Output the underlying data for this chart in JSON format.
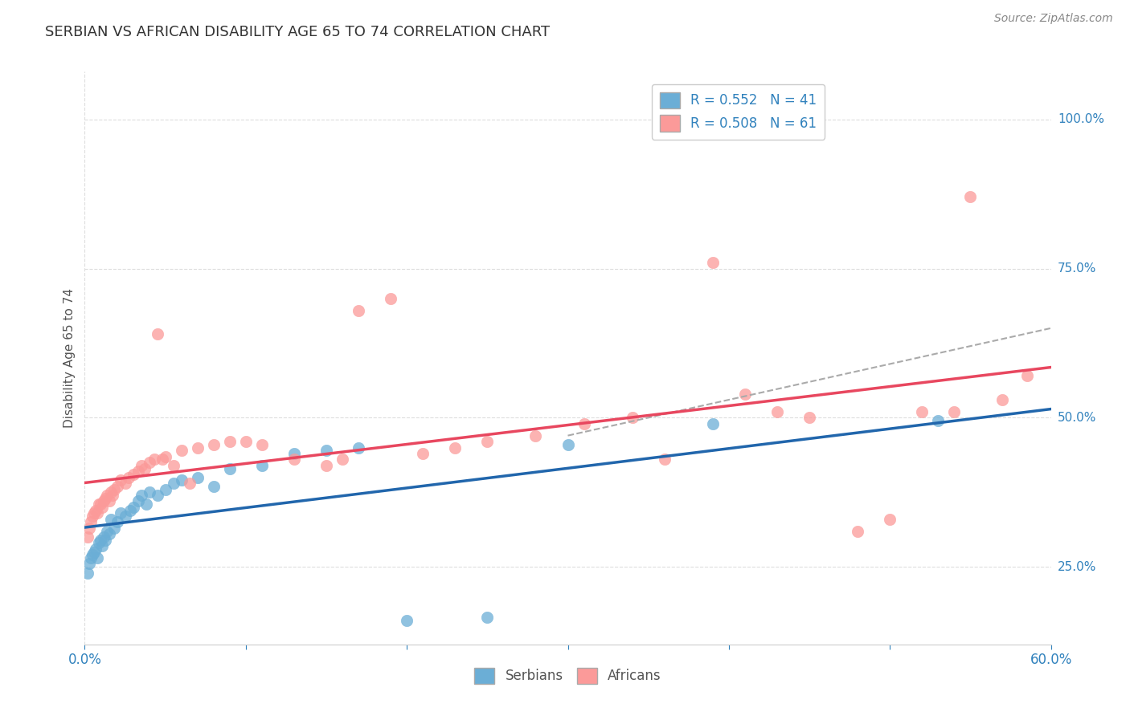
{
  "title": "SERBIAN VS AFRICAN DISABILITY AGE 65 TO 74 CORRELATION CHART",
  "source": "Source: ZipAtlas.com",
  "ylabel": "Disability Age 65 to 74",
  "xlim": [
    0.0,
    0.6
  ],
  "ylim": [
    0.12,
    1.08
  ],
  "xticks": [
    0.0,
    0.1,
    0.2,
    0.3,
    0.4,
    0.5,
    0.6
  ],
  "xticklabels": [
    "0.0%",
    "",
    "",
    "",
    "",
    "",
    "60.0%"
  ],
  "yticks_right": [
    0.25,
    0.5,
    0.75,
    1.0
  ],
  "yticklabels_right": [
    "25.0%",
    "50.0%",
    "75.0%",
    "100.0%"
  ],
  "serbian_color": "#6baed6",
  "african_color": "#fb9a99",
  "serbian_line_color": "#2166ac",
  "african_line_color": "#e8475f",
  "dash_line_color": "#aaaaaa",
  "serbian_R": 0.552,
  "serbian_N": 41,
  "african_R": 0.508,
  "african_N": 61,
  "legend_text_color": "#3182bd",
  "tick_color": "#3182bd",
  "grid_color": "#dddddd",
  "title_color": "#333333",
  "source_color": "#888888",
  "ylabel_color": "#555555",
  "sx": [
    0.002,
    0.003,
    0.004,
    0.005,
    0.006,
    0.007,
    0.008,
    0.009,
    0.01,
    0.011,
    0.012,
    0.013,
    0.014,
    0.015,
    0.016,
    0.018,
    0.02,
    0.022,
    0.025,
    0.028,
    0.03,
    0.033,
    0.035,
    0.038,
    0.04,
    0.045,
    0.05,
    0.055,
    0.06,
    0.07,
    0.08,
    0.09,
    0.11,
    0.13,
    0.15,
    0.17,
    0.2,
    0.25,
    0.3,
    0.39,
    0.53
  ],
  "sy": [
    0.24,
    0.255,
    0.265,
    0.27,
    0.275,
    0.28,
    0.265,
    0.29,
    0.295,
    0.285,
    0.3,
    0.295,
    0.31,
    0.305,
    0.33,
    0.315,
    0.325,
    0.34,
    0.335,
    0.345,
    0.35,
    0.36,
    0.37,
    0.355,
    0.375,
    0.37,
    0.38,
    0.39,
    0.395,
    0.4,
    0.385,
    0.415,
    0.42,
    0.44,
    0.445,
    0.45,
    0.16,
    0.165,
    0.455,
    0.49,
    0.495
  ],
  "ax": [
    0.002,
    0.003,
    0.004,
    0.005,
    0.006,
    0.007,
    0.008,
    0.009,
    0.01,
    0.011,
    0.012,
    0.013,
    0.014,
    0.015,
    0.016,
    0.017,
    0.018,
    0.02,
    0.022,
    0.025,
    0.027,
    0.03,
    0.033,
    0.035,
    0.037,
    0.04,
    0.043,
    0.045,
    0.048,
    0.05,
    0.055,
    0.06,
    0.065,
    0.07,
    0.08,
    0.09,
    0.1,
    0.11,
    0.13,
    0.15,
    0.16,
    0.17,
    0.19,
    0.21,
    0.23,
    0.25,
    0.28,
    0.31,
    0.34,
    0.36,
    0.39,
    0.41,
    0.43,
    0.45,
    0.48,
    0.5,
    0.52,
    0.54,
    0.55,
    0.57,
    0.585
  ],
  "ay": [
    0.3,
    0.315,
    0.325,
    0.335,
    0.34,
    0.345,
    0.34,
    0.355,
    0.355,
    0.35,
    0.36,
    0.365,
    0.37,
    0.36,
    0.375,
    0.37,
    0.38,
    0.385,
    0.395,
    0.39,
    0.4,
    0.405,
    0.41,
    0.42,
    0.415,
    0.425,
    0.43,
    0.64,
    0.43,
    0.435,
    0.42,
    0.445,
    0.39,
    0.45,
    0.455,
    0.46,
    0.46,
    0.455,
    0.43,
    0.42,
    0.43,
    0.68,
    0.7,
    0.44,
    0.45,
    0.46,
    0.47,
    0.49,
    0.5,
    0.43,
    0.76,
    0.54,
    0.51,
    0.5,
    0.31,
    0.33,
    0.51,
    0.51,
    0.87,
    0.53,
    0.57
  ]
}
